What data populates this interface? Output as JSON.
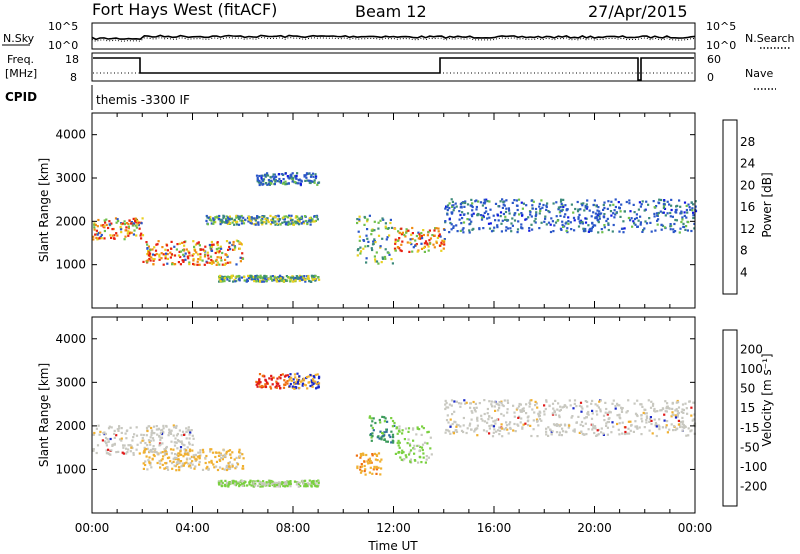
{
  "header": {
    "station": "Fort Hays West (fitACF)",
    "beam": "Beam 12",
    "date": "27/Apr/2015"
  },
  "noise_panel": {
    "left_label": "N.Sky",
    "left_ticks": [
      "10^5",
      "10^0"
    ],
    "right_ticks": [
      "10^5",
      "10^0"
    ],
    "right_label": "N.Search"
  },
  "freq_panel": {
    "left_label_1": "Freq.",
    "left_label_2": "[MHz]",
    "left_ticks": [
      "18",
      "8"
    ],
    "right_ticks": [
      "60",
      "0"
    ],
    "right_label": "Nave"
  },
  "cpid_panel": {
    "label": "CPID",
    "value": "themis -3300 IF"
  },
  "chart_data": [
    {
      "type": "heatmap",
      "title": "",
      "xlabel": "",
      "ylabel": "Slant Range [km]",
      "ylim": [
        0,
        4500
      ],
      "yticks": [
        "4000",
        "3000",
        "2000",
        "1000"
      ],
      "xlim": [
        0,
        24
      ],
      "colorbar": {
        "label": "Power [dB]",
        "ticks": [
          "28",
          "24",
          "20",
          "16",
          "12",
          "8",
          "4"
        ],
        "colors": [
          "#1018e0",
          "#2a56c8",
          "#3c8a7a",
          "#6fbf4a",
          "#e8d020",
          "#f08a10",
          "#e82010"
        ]
      },
      "features": [
        {
          "t0": 0.0,
          "t1": 2.0,
          "range": [
            1500,
            2200
          ],
          "level": "high"
        },
        {
          "t0": 2.0,
          "t1": 6.0,
          "range": [
            900,
            1700
          ],
          "level": "high"
        },
        {
          "t0": 4.5,
          "t1": 9.0,
          "range": [
            1900,
            2200
          ],
          "level": "medium"
        },
        {
          "t0": 6.5,
          "t1": 9.0,
          "range": [
            2800,
            3200
          ],
          "level": "low"
        },
        {
          "t0": 5.0,
          "t1": 9.0,
          "range": [
            600,
            800
          ],
          "level": "medium"
        },
        {
          "t0": 10.5,
          "t1": 12.0,
          "range": [
            800,
            2400
          ],
          "level": "medium"
        },
        {
          "t0": 12.0,
          "t1": 14.0,
          "range": [
            1200,
            2000
          ],
          "level": "high"
        },
        {
          "t0": 14.0,
          "t1": 24.0,
          "range": [
            1600,
            2700
          ],
          "level": "low"
        }
      ]
    },
    {
      "type": "heatmap",
      "title": "",
      "xlabel": "Time UT",
      "ylabel": "Slant Range [km]",
      "ylim": [
        0,
        4500
      ],
      "yticks": [
        "4000",
        "3000",
        "2000",
        "1000"
      ],
      "xticks": [
        "00:00",
        "04:00",
        "08:00",
        "12:00",
        "16:00",
        "20:00",
        "00:00"
      ],
      "xlim": [
        0,
        24
      ],
      "colorbar": {
        "label": "Velocity [m s⁻¹]",
        "ticks": [
          "200",
          "100",
          "50",
          "15",
          "-15",
          "-50",
          "-100",
          "-200"
        ],
        "colors": [
          "#1a28c8",
          "#2e6e9a",
          "#3a9a5a",
          "#7ad040",
          "#c8c8c0",
          "#f0b030",
          "#f07010",
          "#e01818"
        ]
      },
      "features": [
        {
          "t0": 0.0,
          "t1": 4.0,
          "range": [
            1200,
            2200
          ],
          "velocity": "near zero"
        },
        {
          "t0": 2.0,
          "t1": 6.0,
          "range": [
            900,
            1600
          ],
          "velocity": "-15 to -50"
        },
        {
          "t0": 6.5,
          "t1": 9.0,
          "range": [
            2800,
            3300
          ],
          "velocity": "-100 to -200 and 100 to 200"
        },
        {
          "t0": 5.0,
          "t1": 9.0,
          "range": [
            600,
            800
          ],
          "velocity": "15 to 50"
        },
        {
          "t0": 10.5,
          "t1": 11.5,
          "range": [
            800,
            1500
          ],
          "velocity": "-50 to -100"
        },
        {
          "t0": 11.0,
          "t1": 12.0,
          "range": [
            1500,
            2400
          ],
          "velocity": "50 to 100"
        },
        {
          "t0": 12.0,
          "t1": 13.5,
          "range": [
            1000,
            2200
          ],
          "velocity": "15 to 50"
        },
        {
          "t0": 14.0,
          "t1": 24.0,
          "range": [
            1600,
            2800
          ],
          "velocity": "near zero"
        }
      ]
    }
  ]
}
